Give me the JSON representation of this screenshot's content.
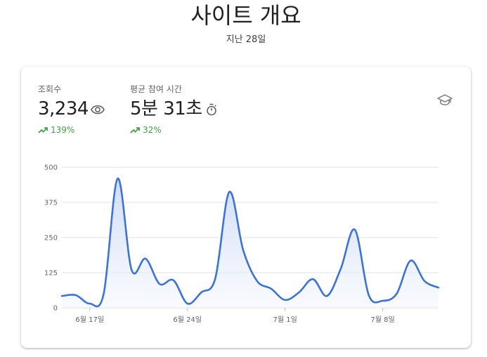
{
  "header": {
    "title": "사이트 개요",
    "subtitle": "지난 28일"
  },
  "metrics": [
    {
      "label": "조회수",
      "value": "3,234",
      "icon": "eye-icon",
      "change": "139%",
      "trend": "up"
    },
    {
      "label": "평균 참여 시간",
      "value": "5분 31초",
      "icon": "timer-icon",
      "change": "32%",
      "trend": "up"
    }
  ],
  "help_icon": "graduation-cap-icon",
  "colors": {
    "line": "#3b73d9",
    "fill_top": "#c9d8f5",
    "fill_bottom": "#f4f7fd",
    "grid": "#e0e0e0",
    "positive": "#43a047",
    "icon": "#5f6368"
  },
  "chart_data": {
    "type": "area",
    "y_ticks": [
      "500",
      "375",
      "250",
      "125",
      "0"
    ],
    "y_tick_values": [
      500,
      375,
      250,
      125,
      0
    ],
    "ylim": [
      0,
      500
    ],
    "x_tick_labels": [
      "6월 17일",
      "6월 24일",
      "7월 1일",
      "7월 8일"
    ],
    "x_tick_day_index": [
      2,
      9,
      16,
      23
    ],
    "grid": true,
    "series": [
      {
        "values": [
          42,
          45,
          15,
          50,
          460,
          135,
          175,
          85,
          98,
          15,
          55,
          105,
          412,
          205,
          95,
          68,
          28,
          55,
          102,
          42,
          140,
          278,
          45,
          25,
          50,
          168,
          95,
          72
        ]
      }
    ]
  }
}
